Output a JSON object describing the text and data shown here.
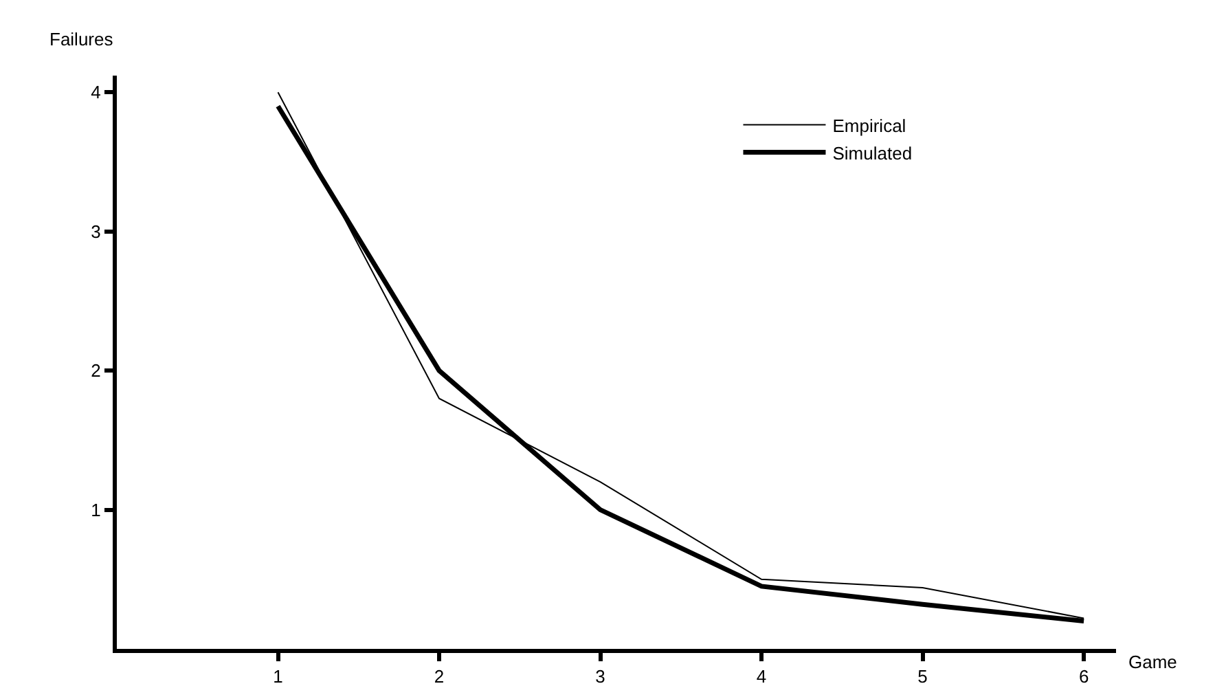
{
  "chart_data": {
    "type": "line",
    "xlabel": "Game",
    "ylabel": "Failures",
    "x": [
      1,
      2,
      3,
      4,
      5,
      6
    ],
    "series": [
      {
        "name": "Empirical",
        "color": "#000000",
        "values": [
          4.0,
          1.8,
          1.2,
          0.5,
          0.44,
          0.22
        ]
      },
      {
        "name": "Simulated",
        "color": "#000000",
        "values": [
          3.9,
          2.0,
          1.0,
          0.45,
          0.32,
          0.2
        ]
      }
    ],
    "xlim": [
      0,
      6.2
    ],
    "ylim": [
      0,
      4.12
    ],
    "xticks": [
      1,
      2,
      3,
      4,
      5,
      6
    ],
    "yticks": [
      1,
      2,
      3,
      4
    ],
    "grid": false,
    "legend": "top right",
    "marker": "none",
    "line_style": "solid"
  }
}
